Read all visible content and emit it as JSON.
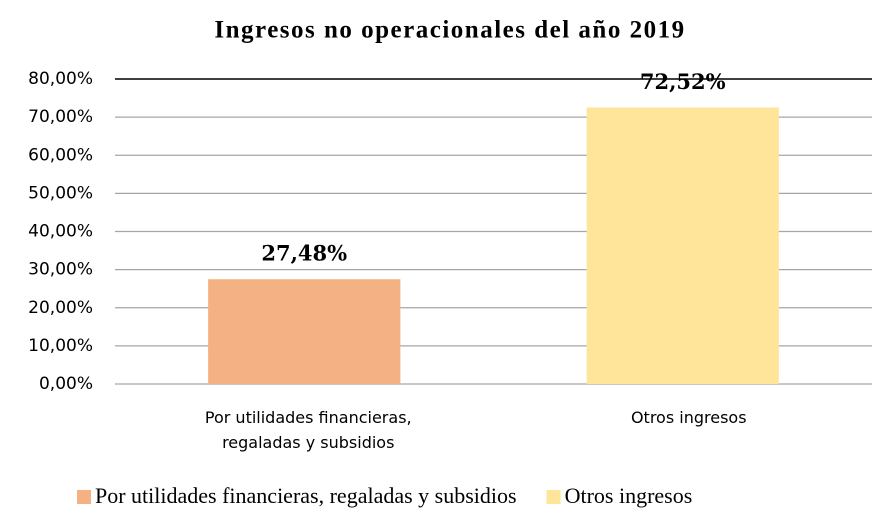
{
  "chart_data": {
    "type": "bar",
    "title": "Ingresos no operacionales del año 2019",
    "categories": [
      "Por utilidades financieras, regaladas y subsidios",
      "Otros ingresos"
    ],
    "values": [
      27.48,
      72.52
    ],
    "value_labels": [
      "27,48%",
      "72,52%"
    ],
    "colors": [
      "#f4b183",
      "#fee599"
    ],
    "ylim": [
      0,
      80
    ],
    "yticks": [
      {
        "value": 0,
        "label": "0,00%"
      },
      {
        "value": 10,
        "label": "10,00%"
      },
      {
        "value": 20,
        "label": "20,00%"
      },
      {
        "value": 30,
        "label": "30,00%"
      },
      {
        "value": 40,
        "label": "40,00%"
      },
      {
        "value": 50,
        "label": "50,00%"
      },
      {
        "value": 60,
        "label": "60,00%"
      },
      {
        "value": 70,
        "label": "70,00%"
      },
      {
        "value": 80,
        "label": "80,00%"
      }
    ],
    "grid": true,
    "legend": "bottom"
  }
}
